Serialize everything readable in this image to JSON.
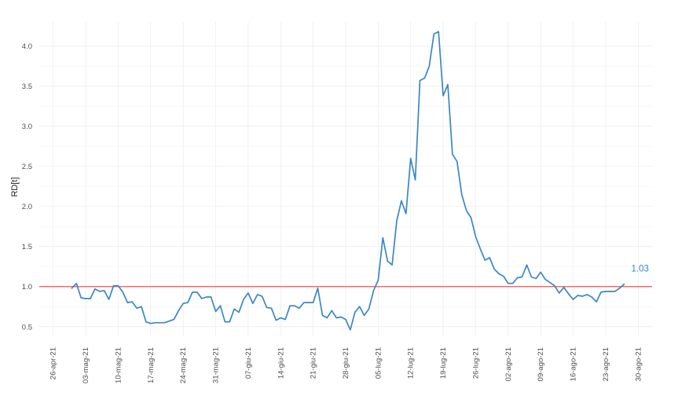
{
  "chart_data": {
    "type": "line",
    "title": "",
    "xlabel": "",
    "ylabel": "RD[t]",
    "ylim": [
      0.38,
      4.3
    ],
    "xlim": [
      "2021-04-26",
      "2021-08-30"
    ],
    "yticks": [
      0.5,
      1.0,
      1.5,
      2.0,
      2.5,
      3.0,
      3.5,
      4.0
    ],
    "ytick_labels": [
      "0.5",
      "1.0",
      "1.5",
      "2.0",
      "2.5",
      "3.0",
      "3.5",
      "4.0"
    ],
    "xticks": [
      "2021-04-26",
      "2021-05-03",
      "2021-05-10",
      "2021-05-17",
      "2021-05-24",
      "2021-05-31",
      "2021-06-07",
      "2021-06-14",
      "2021-06-21",
      "2021-06-28",
      "2021-07-05",
      "2021-07-12",
      "2021-07-19",
      "2021-07-26",
      "2021-08-02",
      "2021-08-09",
      "2021-08-16",
      "2021-08-23",
      "2021-08-30"
    ],
    "xtick_labels": [
      "26-apr-21",
      "03-mag-21",
      "10-mag-21",
      "17-mag-21",
      "24-mag-21",
      "31-mag-21",
      "07-giu-21",
      "14-giu-21",
      "21-giu-21",
      "28-giu-21",
      "05-lug-21",
      "12-lug-21",
      "19-lug-21",
      "26-lug-21",
      "02-ago-21",
      "09-ago-21",
      "16-ago-21",
      "23-ago-21",
      "30-ago-21"
    ],
    "grid": true,
    "reference_line": {
      "y": 1.0,
      "color": "#f0505a"
    },
    "end_label": "1.03",
    "series": [
      {
        "color": "#3a87c4",
        "x": [
          "2021-04-30",
          "2021-05-01",
          "2021-05-02",
          "2021-05-03",
          "2021-05-04",
          "2021-05-05",
          "2021-05-06",
          "2021-05-07",
          "2021-05-08",
          "2021-05-09",
          "2021-05-10",
          "2021-05-11",
          "2021-05-12",
          "2021-05-13",
          "2021-05-14",
          "2021-05-15",
          "2021-05-16",
          "2021-05-17",
          "2021-05-18",
          "2021-05-19",
          "2021-05-20",
          "2021-05-21",
          "2021-05-22",
          "2021-05-23",
          "2021-05-24",
          "2021-05-25",
          "2021-05-26",
          "2021-05-27",
          "2021-05-28",
          "2021-05-29",
          "2021-05-30",
          "2021-05-31",
          "2021-06-01",
          "2021-06-02",
          "2021-06-03",
          "2021-06-04",
          "2021-06-05",
          "2021-06-06",
          "2021-06-07",
          "2021-06-08",
          "2021-06-09",
          "2021-06-10",
          "2021-06-11",
          "2021-06-12",
          "2021-06-13",
          "2021-06-14",
          "2021-06-15",
          "2021-06-16",
          "2021-06-17",
          "2021-06-18",
          "2021-06-19",
          "2021-06-20",
          "2021-06-21",
          "2021-06-22",
          "2021-06-23",
          "2021-06-24",
          "2021-06-25",
          "2021-06-26",
          "2021-06-27",
          "2021-06-28",
          "2021-06-29",
          "2021-06-30",
          "2021-07-01",
          "2021-07-02",
          "2021-07-03",
          "2021-07-04",
          "2021-07-05",
          "2021-07-06",
          "2021-07-07",
          "2021-07-08",
          "2021-07-09",
          "2021-07-10",
          "2021-07-11",
          "2021-07-12",
          "2021-07-13",
          "2021-07-14",
          "2021-07-15",
          "2021-07-16",
          "2021-07-17",
          "2021-07-18",
          "2021-07-19",
          "2021-07-20",
          "2021-07-21",
          "2021-07-22",
          "2021-07-23",
          "2021-07-24",
          "2021-07-25",
          "2021-07-26",
          "2021-07-27",
          "2021-07-28",
          "2021-07-29",
          "2021-07-30",
          "2021-07-31",
          "2021-08-01",
          "2021-08-02",
          "2021-08-03",
          "2021-08-04",
          "2021-08-05",
          "2021-08-06",
          "2021-08-07",
          "2021-08-08",
          "2021-08-09",
          "2021-08-10",
          "2021-08-11",
          "2021-08-12",
          "2021-08-13",
          "2021-08-14",
          "2021-08-15",
          "2021-08-16",
          "2021-08-17",
          "2021-08-18",
          "2021-08-19",
          "2021-08-20",
          "2021-08-21",
          "2021-08-22",
          "2021-08-23",
          "2021-08-24",
          "2021-08-25",
          "2021-08-26",
          "2021-08-27"
        ],
        "y": [
          0.98,
          1.04,
          0.86,
          0.85,
          0.85,
          0.97,
          0.94,
          0.95,
          0.84,
          1.01,
          1.01,
          0.93,
          0.8,
          0.81,
          0.73,
          0.75,
          0.56,
          0.54,
          0.55,
          0.55,
          0.55,
          0.57,
          0.59,
          0.7,
          0.79,
          0.8,
          0.93,
          0.93,
          0.85,
          0.87,
          0.87,
          0.69,
          0.76,
          0.56,
          0.56,
          0.72,
          0.68,
          0.84,
          0.92,
          0.79,
          0.9,
          0.88,
          0.74,
          0.73,
          0.58,
          0.61,
          0.59,
          0.76,
          0.76,
          0.73,
          0.8,
          0.8,
          0.8,
          0.98,
          0.64,
          0.61,
          0.7,
          0.61,
          0.62,
          0.59,
          0.46,
          0.68,
          0.75,
          0.64,
          0.72,
          0.95,
          1.08,
          1.61,
          1.32,
          1.27,
          1.82,
          2.07,
          1.91,
          2.6,
          2.33,
          3.57,
          3.6,
          3.75,
          4.15,
          4.18,
          3.38,
          3.52,
          2.65,
          2.56,
          2.15,
          1.95,
          1.86,
          1.62,
          1.47,
          1.33,
          1.36,
          1.22,
          1.16,
          1.13,
          1.04,
          1.04,
          1.11,
          1.12,
          1.27,
          1.12,
          1.1,
          1.18,
          1.09,
          1.05,
          1.01,
          0.92,
          0.99,
          0.91,
          0.84,
          0.89,
          0.88,
          0.9,
          0.87,
          0.81,
          0.93,
          0.94,
          0.94,
          0.94,
          0.98,
          1.03
        ]
      }
    ]
  }
}
